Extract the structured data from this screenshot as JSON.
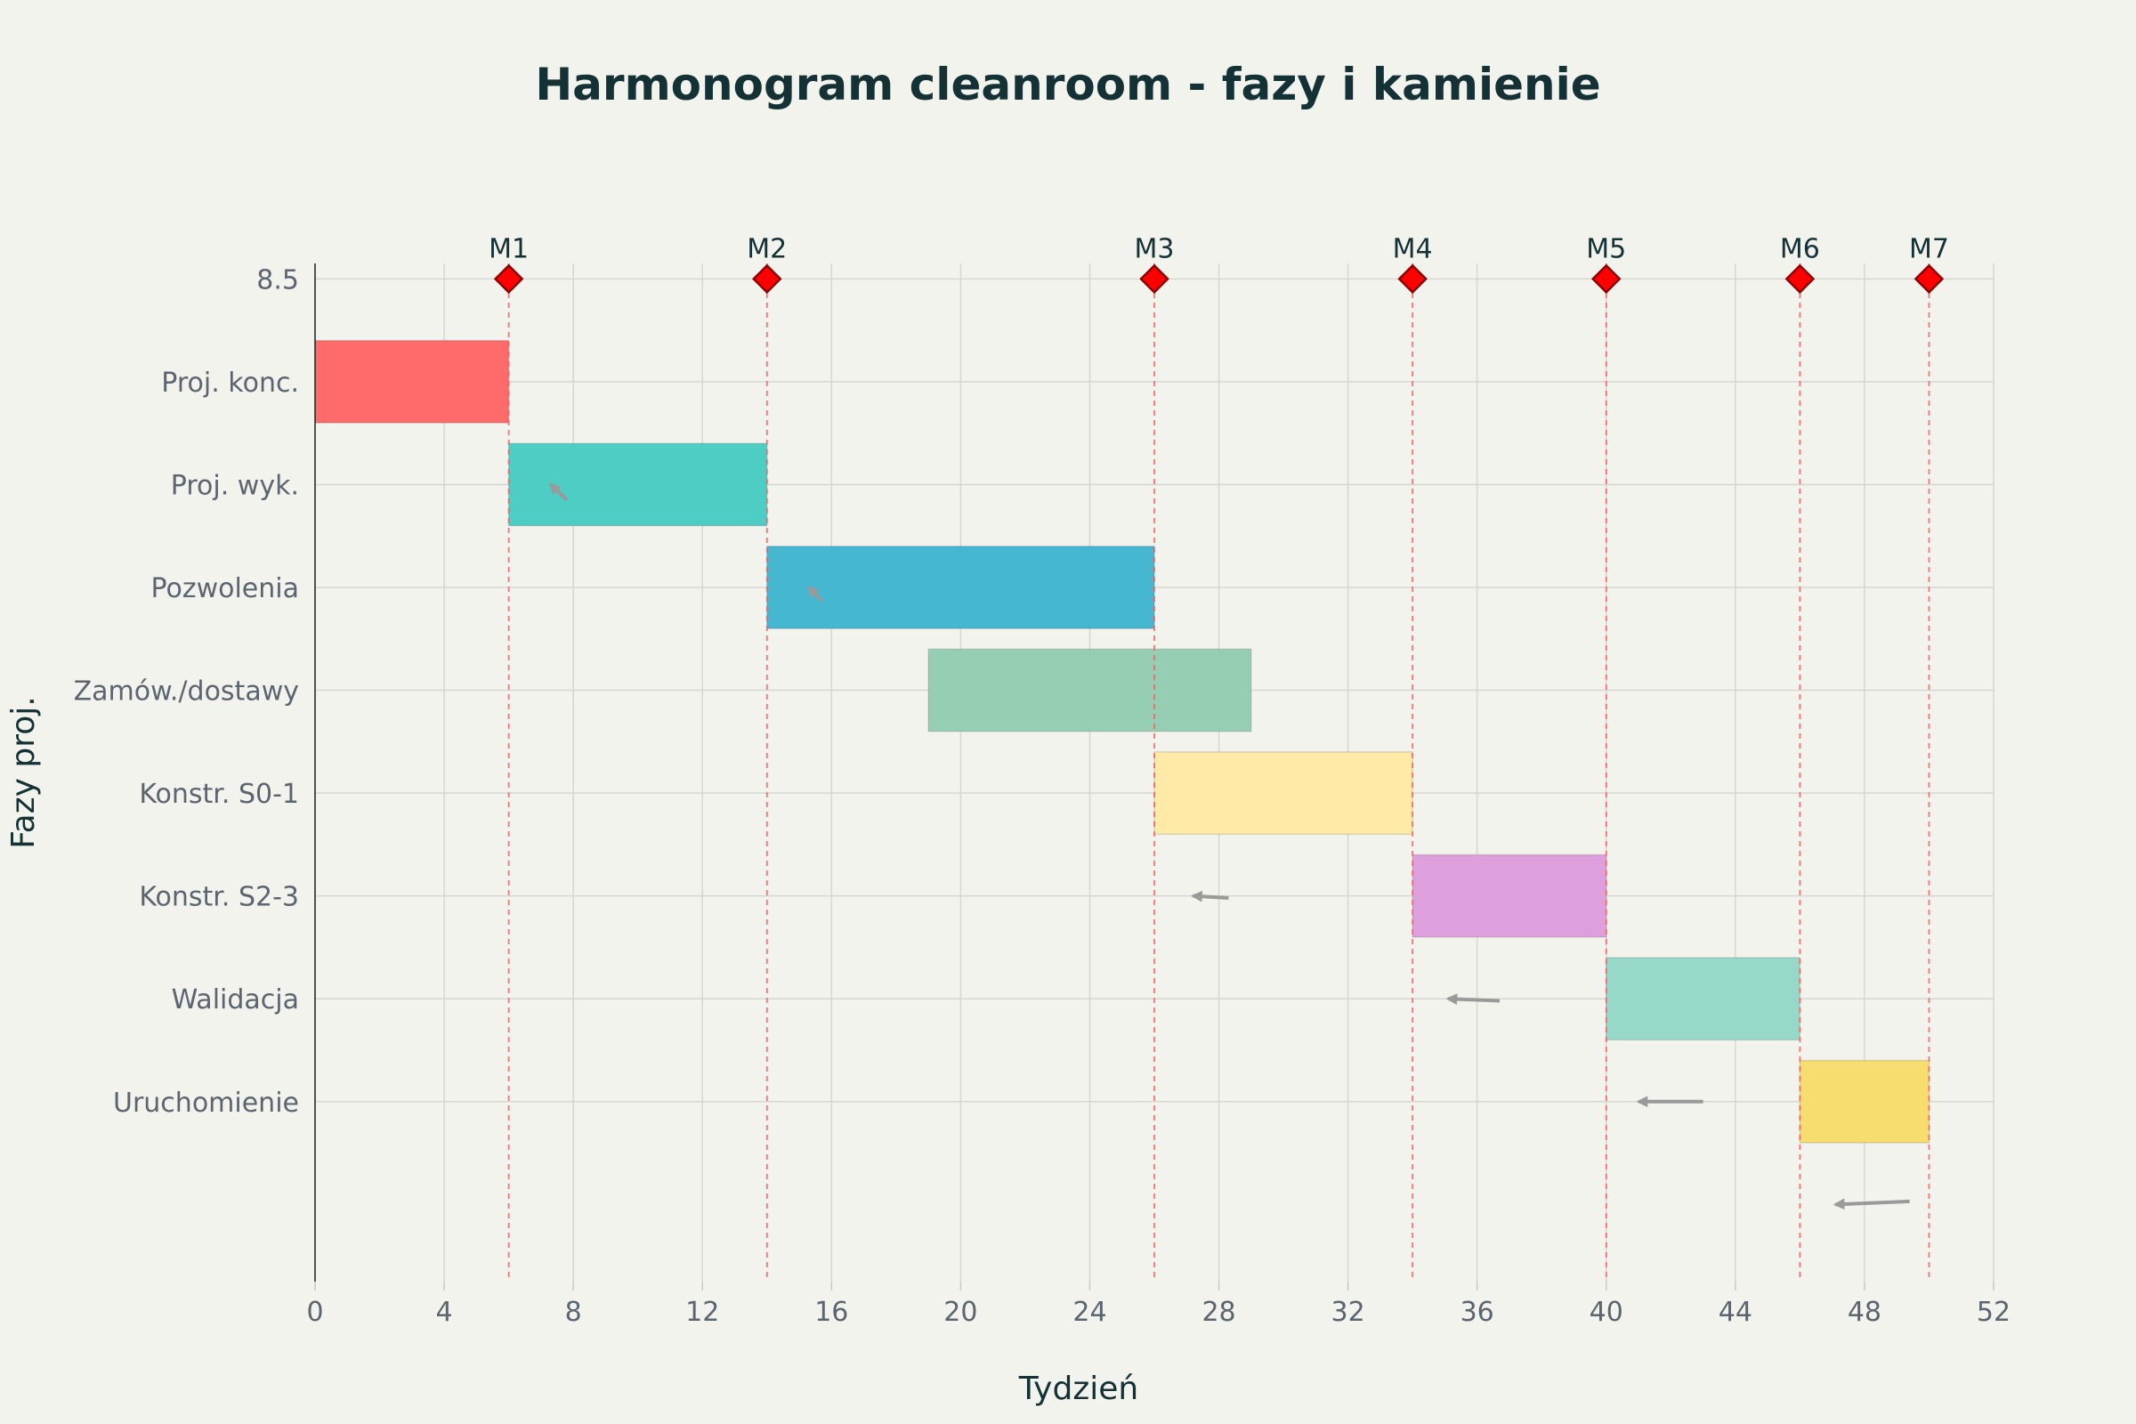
{
  "chart_data": {
    "type": "bar",
    "orientation": "horizontal",
    "subtype": "gantt",
    "title": "Harmonogram cleanroom - fazy i kamienie",
    "xlabel": "Tydzień",
    "ylabel": "Fazy proj.",
    "xlim": [
      0,
      52
    ],
    "xticks": [
      0,
      4,
      8,
      12,
      16,
      20,
      24,
      28,
      32,
      36,
      40,
      44,
      48,
      52
    ],
    "ylim": [
      -0.75,
      9.15
    ],
    "grid": true,
    "background": "#f3f3ee",
    "tasks": [
      {
        "name": "Proj. konc.",
        "y": 8,
        "start": 0,
        "end": 6,
        "color": "#ff6b6b"
      },
      {
        "name": "Proj. wyk.",
        "y": 7,
        "start": 6,
        "end": 14,
        "color": "#4ecdc4"
      },
      {
        "name": "Pozwolenia",
        "y": 6,
        "start": 14,
        "end": 26,
        "color": "#45b7d1"
      },
      {
        "name": "Zamów./dostawy",
        "y": 5,
        "start": 19,
        "end": 29,
        "color": "#96ceb4"
      },
      {
        "name": "Konstr. S0-1",
        "y": 4,
        "start": 26,
        "end": 34,
        "color": "#ffeaa7"
      },
      {
        "name": "Konstr. S2-3",
        "y": 3,
        "start": 34,
        "end": 40,
        "color": "#dda0dd"
      },
      {
        "name": "Walidacja",
        "y": 2,
        "start": 40,
        "end": 46,
        "color": "#98d8c8"
      },
      {
        "name": "Uruchomienie",
        "y": 1,
        "start": 46,
        "end": 50,
        "color": "#f7dc6f"
      }
    ],
    "milestone_row_label": "8.5",
    "milestone_y": 9,
    "milestone_color": "#ff0000",
    "milestone_outline": "#8b0000",
    "milestones": [
      {
        "label": "M1",
        "x": 6
      },
      {
        "label": "M2",
        "x": 14
      },
      {
        "label": "M3",
        "x": 26
      },
      {
        "label": "M4",
        "x": 34
      },
      {
        "label": "M5",
        "x": 40
      },
      {
        "label": "M6",
        "x": 46
      },
      {
        "label": "M7",
        "x": 50
      }
    ],
    "dependency_arrow_color": "#9a9a9a",
    "dependency_arrows": [
      {
        "x0": 7.8,
        "y0": 6.85,
        "x1": 7.3,
        "y1": 7.0
      },
      {
        "x0": 15.7,
        "y0": 5.87,
        "x1": 15.3,
        "y1": 6.0
      },
      {
        "x0": 28.3,
        "y0": 2.98,
        "x1": 27.2,
        "y1": 3.0
      },
      {
        "x0": 36.7,
        "y0": 1.98,
        "x1": 35.1,
        "y1": 2.0
      },
      {
        "x0": 43.0,
        "y0": 1.0,
        "x1": 41.0,
        "y1": 1.0
      },
      {
        "x0": 49.4,
        "y0": 0.03,
        "x1": 47.1,
        "y1": 0.0
      }
    ]
  }
}
